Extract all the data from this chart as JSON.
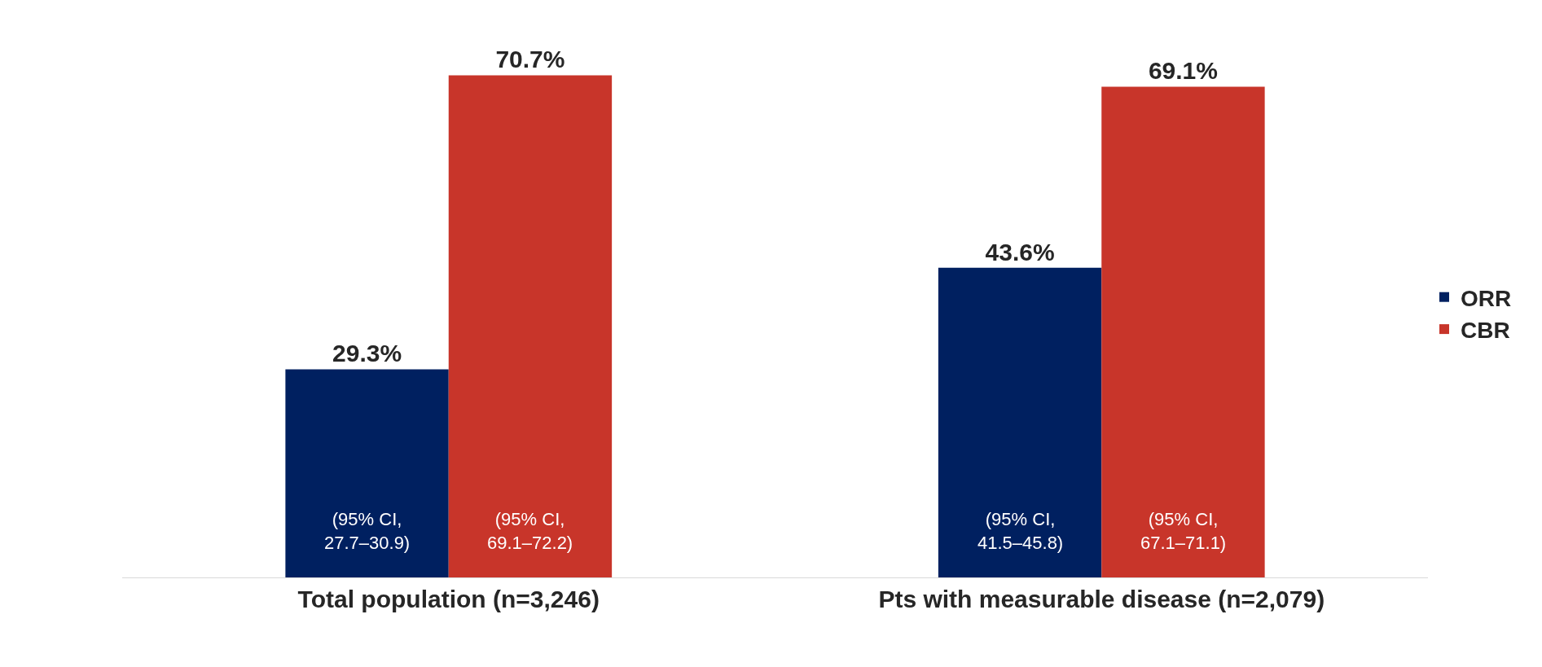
{
  "chart_data": {
    "type": "bar",
    "categories": [
      "Total population (n=3,246)",
      "Pts with measurable disease (n=2,079)"
    ],
    "series": [
      {
        "name": "ORR",
        "color": "#002060",
        "values": [
          29.3,
          43.6
        ],
        "value_labels": [
          "29.3%",
          "43.6%"
        ]
      },
      {
        "name": "CBR",
        "color": "#c8352a",
        "values": [
          70.7,
          69.1
        ],
        "value_labels": [
          "70.7%",
          "69.1%"
        ]
      }
    ],
    "tick_labels": "x",
    "legend": "right",
    "annotations": [
      "(95% CI,\n27.7–30.9)",
      "(95% CI,\n69.1–72.2)",
      "(95% CI,\n41.5–45.8)",
      "(95% CI,\n67.1–71.1)"
    ]
  }
}
